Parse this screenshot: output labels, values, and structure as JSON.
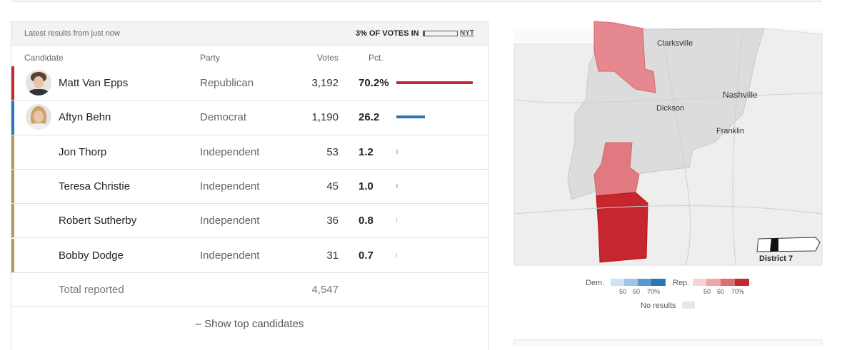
{
  "header": {
    "updated": "Latest results from just now",
    "reporting": "3% OF VOTES IN",
    "source": "NYT"
  },
  "table": {
    "columns": [
      "Candidate",
      "Party",
      "Votes",
      "Pct."
    ],
    "rows": [
      {
        "candidate": "Matt Van Epps",
        "party": "Republican",
        "votes": "3,192",
        "pct": 70.2,
        "pct_label": "70.2%",
        "color": "#c6262e",
        "photo": true
      },
      {
        "candidate": "Aftyn Behn",
        "party": "Democrat",
        "votes": "1,190",
        "pct": 26.2,
        "pct_label": "26.2",
        "color": "#2b74b8",
        "photo": true
      },
      {
        "candidate": "Jon Thorp",
        "party": "Independent",
        "votes": "53",
        "pct": 1.2,
        "pct_label": "1.2",
        "color": "#b5985a",
        "photo": false
      },
      {
        "candidate": "Teresa Christie",
        "party": "Independent",
        "votes": "45",
        "pct": 1.0,
        "pct_label": "1.0",
        "color": "#b5985a",
        "photo": false
      },
      {
        "candidate": "Robert Sutherby",
        "party": "Independent",
        "votes": "36",
        "pct": 0.8,
        "pct_label": "0.8",
        "color": "#b5985a",
        "photo": false
      },
      {
        "candidate": "Bobby Dodge",
        "party": "Independent",
        "votes": "31",
        "pct": 0.7,
        "pct_label": "0.7",
        "color": "#b5985a",
        "photo": false
      }
    ],
    "total": {
      "label": "Total reported",
      "votes": "4,547"
    },
    "toggle": "– Show top candidates"
  },
  "map": {
    "places": [
      "Clarksville",
      "Nashville",
      "Dickson",
      "Franklin"
    ],
    "inset_label": "District 7",
    "legend": {
      "dem": "Dem.",
      "rep": "Rep.",
      "ticks": [
        "50",
        "60",
        "70%"
      ],
      "no_results": "No results"
    }
  }
}
